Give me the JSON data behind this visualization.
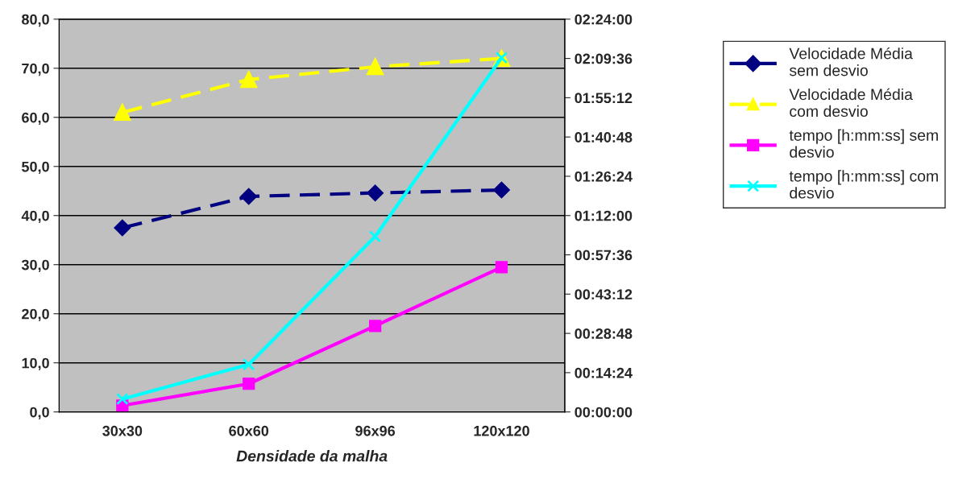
{
  "chart_data": {
    "type": "line",
    "xlabel": "Densidade da malha",
    "categories": [
      "30x30",
      "60x60",
      "96x96",
      "120x120"
    ],
    "series": [
      {
        "name": "Velocidade Média\nsem desvio",
        "color": "#000080",
        "values": [
          37.5,
          43.9,
          44.6,
          45.2
        ],
        "marker": "diamond",
        "line_style": "dashed"
      },
      {
        "name": "Velocidade Média\ncom desvio",
        "color": "#ffff00",
        "values": [
          61.0,
          67.7,
          70.3,
          72.0
        ],
        "marker": "triangle",
        "line_style": "dashed"
      },
      {
        "name": "tempo [h:mm:ss] sem\ndesvio",
        "color": "#ff00ff",
        "values": [
          0.039,
          0.172,
          0.526,
          0.885
        ],
        "marker": "square",
        "line_style": "solid",
        "axis": "y2"
      },
      {
        "name": "tempo [h:mm:ss] com\ndesvio",
        "color": "#00ffff",
        "values": [
          0.079,
          0.29,
          1.072,
          2.164
        ],
        "marker": "cross",
        "line_style": "solid",
        "axis": "y2"
      }
    ],
    "ylim": [
      0,
      80
    ],
    "yticks": [
      {
        "value": 0,
        "label": "0,0"
      },
      {
        "value": 10,
        "label": "10,0"
      },
      {
        "value": 20,
        "label": "20,0"
      },
      {
        "value": 30,
        "label": "30,0"
      },
      {
        "value": 40,
        "label": "40,0"
      },
      {
        "value": 50,
        "label": "50,0"
      },
      {
        "value": 60,
        "label": "60,0"
      },
      {
        "value": 70,
        "label": "70,0"
      },
      {
        "value": 80,
        "label": "80,0"
      }
    ],
    "y2lim": [
      0,
      2.4
    ],
    "y2ticks": [
      {
        "value": 0,
        "label": "00:00:00"
      },
      {
        "value": 0.24,
        "label": "00:14:24"
      },
      {
        "value": 0.48,
        "label": "00:28:48"
      },
      {
        "value": 0.72,
        "label": "00:43:12"
      },
      {
        "value": 0.96,
        "label": "00:57:36"
      },
      {
        "value": 1.2,
        "label": "01:12:00"
      },
      {
        "value": 1.44,
        "label": "01:26:24"
      },
      {
        "value": 1.68,
        "label": "01:40:48"
      },
      {
        "value": 1.92,
        "label": "01:55:12"
      },
      {
        "value": 2.16,
        "label": "02:09:36"
      },
      {
        "value": 2.4,
        "label": "02:24:00"
      }
    ],
    "grid": "y",
    "legend": "right"
  }
}
